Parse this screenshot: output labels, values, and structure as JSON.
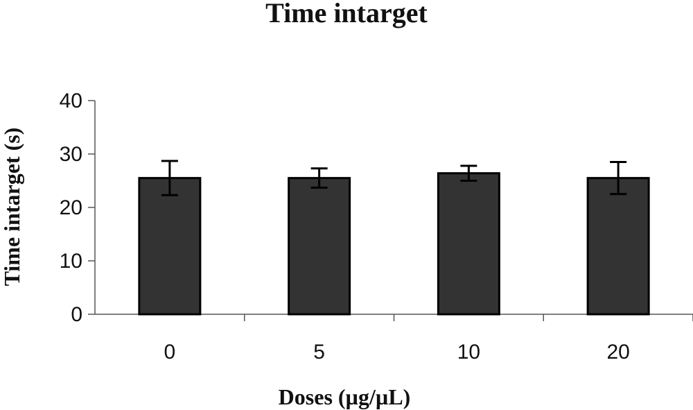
{
  "chart_data": {
    "type": "bar",
    "title": "Time intarget",
    "xlabel": "Doses (µg/µL)",
    "ylabel": "Time intarget (s)",
    "categories": [
      "0",
      "5",
      "10",
      "20"
    ],
    "values": [
      25.5,
      25.5,
      26.4,
      25.5
    ],
    "error": [
      3.2,
      1.8,
      1.4,
      3.0
    ],
    "ylim": [
      0,
      40
    ],
    "yticks": [
      0,
      10,
      20,
      30,
      40
    ],
    "bar_color": "#333333",
    "grid": false,
    "legend": "none"
  }
}
